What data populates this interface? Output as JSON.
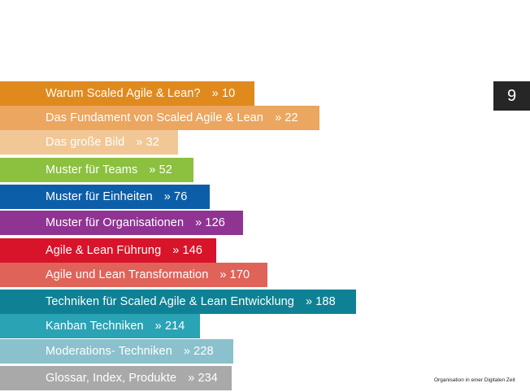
{
  "toc": [
    {
      "title": "Warum Scaled Agile & Lean?",
      "page": "» 10",
      "color": "#e08a1e"
    },
    {
      "title": "Das Fundament von Scaled Agile & Lean",
      "page": "» 22",
      "color": "#eba660"
    },
    {
      "title": "Das große Bild",
      "page": "» 32",
      "color": "#f1c796"
    },
    {
      "title": "Muster für Teams",
      "page": "» 52",
      "color": "#8cc03f"
    },
    {
      "title": "Muster für Einheiten",
      "page": "» 76",
      "color": "#0d5ea8"
    },
    {
      "title": "Muster für Organisationen",
      "page": "» 126",
      "color": "#8f3493"
    },
    {
      "title": "Agile & Lean Führung",
      "page": "» 146",
      "color": "#d8142a"
    },
    {
      "title": "Agile und Lean Transformation",
      "page": "» 170",
      "color": "#e0635a"
    },
    {
      "title": "Techniken für Scaled Agile & Lean Entwicklung",
      "page": "» 188",
      "color": "#0e8294"
    },
    {
      "title": "Kanban Techniken",
      "page": "» 214",
      "color": "#2aa3b5"
    },
    {
      "title": "Moderations- Techniken",
      "page": "» 228",
      "color": "#8ac1cc"
    },
    {
      "title": "Glossar, Index, Produkte",
      "page": "» 234",
      "color": "#a9a9a9"
    }
  ],
  "page_number": "9",
  "footer_text": "Organisation in einer Digitalen Zeit"
}
